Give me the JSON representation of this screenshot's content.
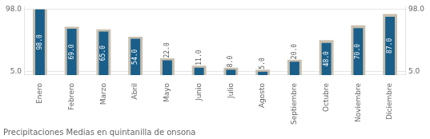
{
  "chart_data": {
    "type": "bar",
    "title": "Precipitaciones Medias en quintanilla de onsona",
    "categories": [
      "Enero",
      "Febrero",
      "Marzo",
      "Abril",
      "Mayo",
      "Junio",
      "Julio",
      "Agosto",
      "Septiembre",
      "Octubre",
      "Noviembre",
      "Diciembre"
    ],
    "series": [
      {
        "color": "#c8bfaf",
        "values": [
          98.0,
          72.0,
          68.0,
          57.0,
          25.0,
          14.0,
          11.0,
          8.0,
          23.0,
          52.0,
          74.0,
          91.0
        ]
      },
      {
        "color": "#1a5f8a",
        "values": [
          98.0,
          69.0,
          65.0,
          54.0,
          22.0,
          11.0,
          8.0,
          5.0,
          20.0,
          48.0,
          70.0,
          87.0
        ],
        "data_labels": true,
        "value_labels": [
          "98.0",
          "69.0",
          "65.0",
          "54.0",
          "22.0",
          "11.0",
          "8.0",
          "5.0",
          "20.0",
          "48.0",
          "70.0",
          "87.0"
        ]
      }
    ],
    "ylim": [
      0,
      101.92
    ],
    "yticks": [
      {
        "value": 5.0,
        "label": "5.0"
      },
      {
        "value": 98.0,
        "label": "98.0"
      }
    ],
    "y2lim": [
      0,
      101.92
    ],
    "y2ticks": [
      {
        "value": 5.0,
        "label": "5.0"
      },
      {
        "value": 98.0,
        "label": "98.0"
      }
    ],
    "grid": true
  }
}
